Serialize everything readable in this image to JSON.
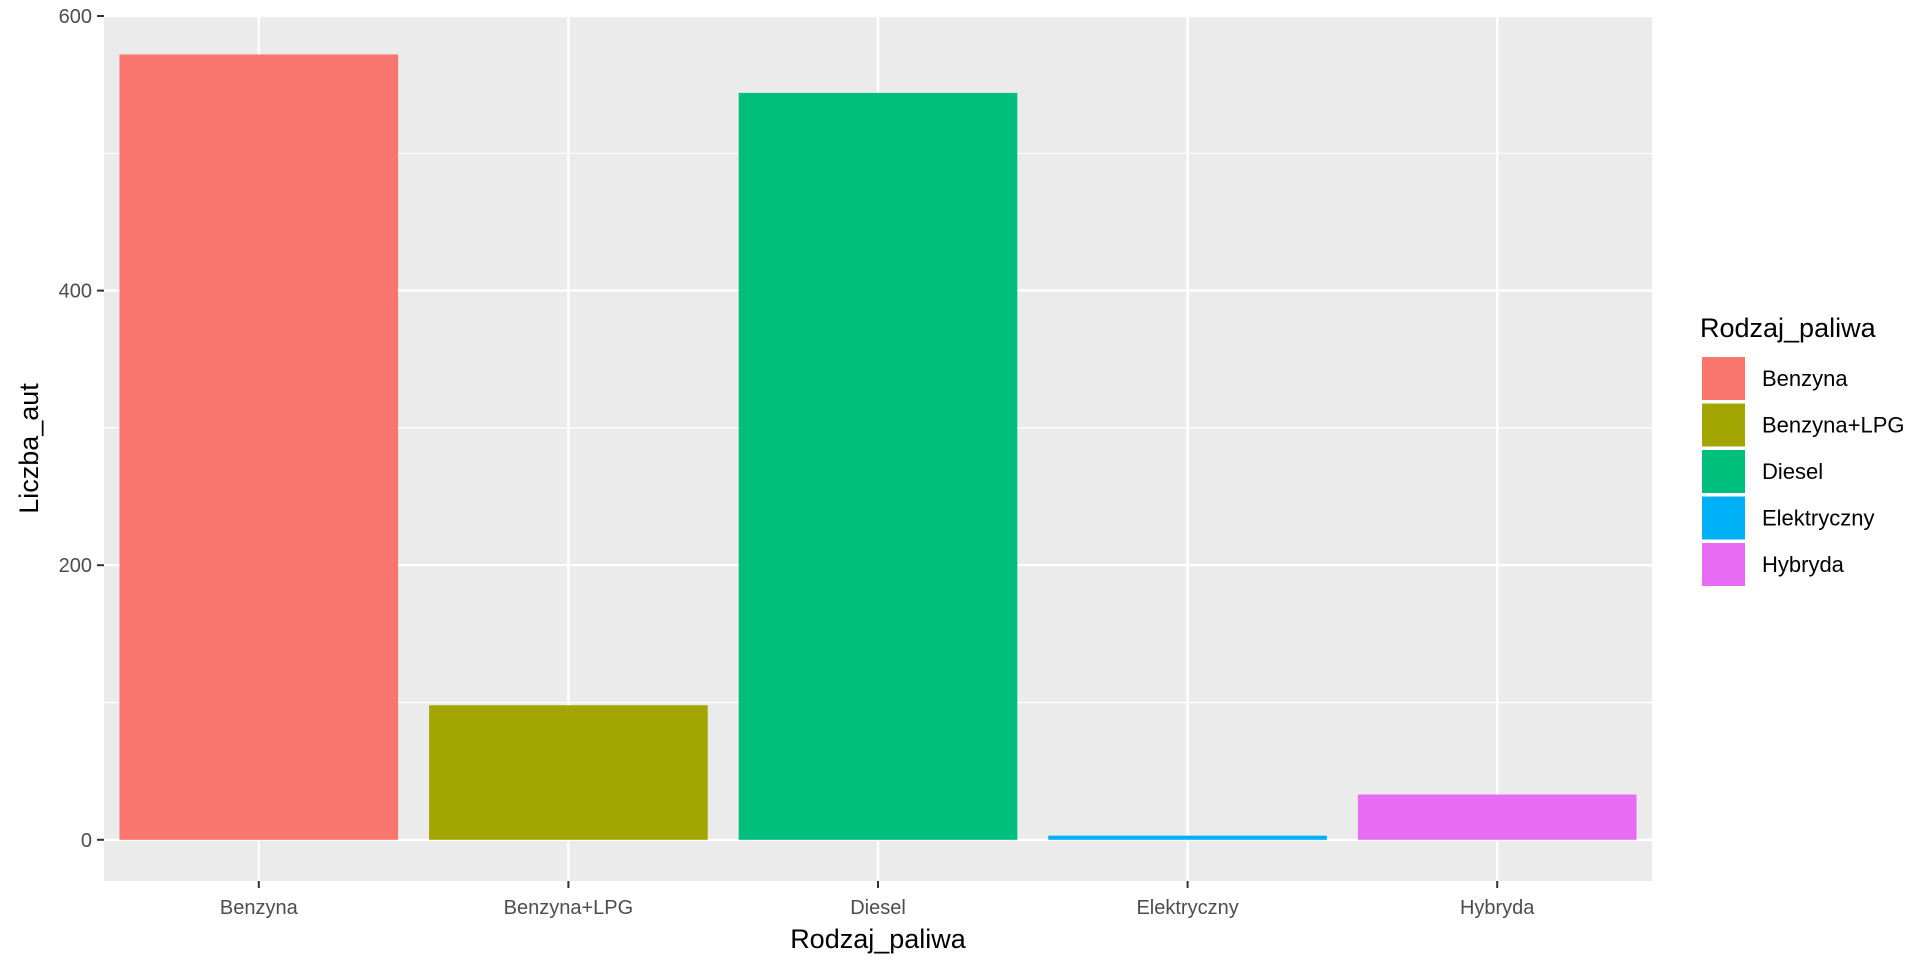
{
  "chart_data": {
    "type": "bar",
    "xlabel": "Rodzaj_paliwa",
    "ylabel": "Liczba_aut",
    "categories": [
      "Benzyna",
      "Benzyna+LPG",
      "Diesel",
      "Elektryczny",
      "Hybryda"
    ],
    "values": [
      572,
      98,
      544,
      3,
      33
    ],
    "colors": [
      "#F8766D",
      "#A3A500",
      "#00BF7D",
      "#00B0F6",
      "#E76BF3"
    ],
    "ylim": [
      -30,
      600
    ],
    "yticks": [
      0,
      200,
      400,
      600
    ],
    "y_minor_ticks": [
      100,
      300,
      500
    ],
    "grid": true,
    "background": "#EBEBEB",
    "legend": {
      "title": "Rodzaj_paliwa",
      "placement": "right",
      "entries": [
        "Benzyna",
        "Benzyna+LPG",
        "Diesel",
        "Elektryczny",
        "Hybryda"
      ]
    }
  }
}
